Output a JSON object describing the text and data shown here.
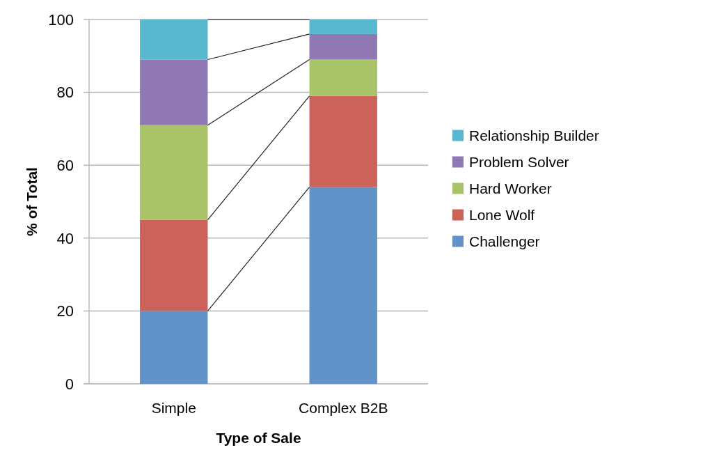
{
  "chart_data": {
    "type": "bar",
    "stacked": true,
    "xlabel": "Type of Sale",
    "ylabel": "% of Total",
    "categories": [
      "Simple",
      "Complex B2B"
    ],
    "series": [
      {
        "name": "Challenger",
        "color": "#6193c8",
        "values": [
          20,
          54
        ]
      },
      {
        "name": "Lone Wolf",
        "color": "#cd625b",
        "values": [
          25,
          25
        ]
      },
      {
        "name": "Hard Worker",
        "color": "#a9c368",
        "values": [
          26,
          10
        ]
      },
      {
        "name": "Problem Solver",
        "color": "#8f78b4",
        "values": [
          18,
          7
        ]
      },
      {
        "name": "Relationship Builder",
        "color": "#58b9ce",
        "values": [
          11,
          4
        ]
      }
    ],
    "ylim": [
      0,
      100
    ],
    "yticks": [
      0,
      20,
      40,
      60,
      80,
      100
    ],
    "grid": "y",
    "legend": "right"
  }
}
